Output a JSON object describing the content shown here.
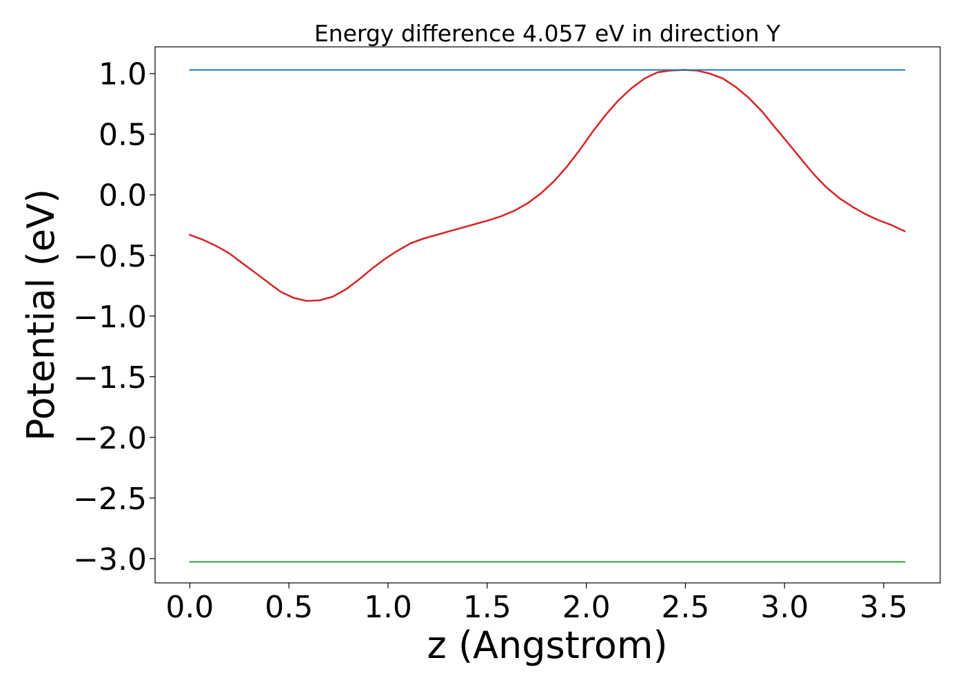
{
  "chart_data": {
    "type": "line",
    "title": "Energy difference 4.057 eV in direction Y",
    "xlabel": "z (Angstrom)",
    "ylabel": "Potential (eV)",
    "xlim": [
      -0.175,
      3.785
    ],
    "ylim": [
      -3.2,
      1.22
    ],
    "xticks": [
      0.0,
      0.5,
      1.0,
      1.5,
      2.0,
      2.5,
      3.0,
      3.5
    ],
    "xtick_labels": [
      "0.0",
      "0.5",
      "1.0",
      "1.5",
      "2.0",
      "2.5",
      "3.0",
      "3.5"
    ],
    "yticks": [
      1.0,
      0.5,
      0.0,
      -0.5,
      -1.0,
      -1.5,
      -2.0,
      -2.5,
      -3.0
    ],
    "ytick_labels": [
      "1.0",
      "0.5",
      "0.0",
      "−0.5",
      "−1.0",
      "−1.5",
      "−2.0",
      "−2.5",
      "−3.0"
    ],
    "grid": false,
    "series": [
      {
        "color": "#d62728",
        "x": [
          0.0,
          0.066,
          0.131,
          0.197,
          0.262,
          0.328,
          0.393,
          0.459,
          0.524,
          0.59,
          0.655,
          0.721,
          0.787,
          0.852,
          0.918,
          0.983,
          1.049,
          1.114,
          1.18,
          1.246,
          1.311,
          1.377,
          1.442,
          1.508,
          1.573,
          1.639,
          1.704,
          1.77,
          1.836,
          1.901,
          1.967,
          2.032,
          2.098,
          2.163,
          2.229,
          2.295,
          2.36,
          2.426,
          2.491,
          2.557,
          2.622,
          2.688,
          2.753,
          2.819,
          2.885,
          2.95,
          3.016,
          3.081,
          3.147,
          3.212,
          3.278,
          3.344,
          3.409,
          3.475,
          3.54,
          3.606
        ],
        "y": [
          -0.33,
          -0.37,
          -0.42,
          -0.48,
          -0.56,
          -0.64,
          -0.72,
          -0.8,
          -0.85,
          -0.875,
          -0.87,
          -0.84,
          -0.78,
          -0.7,
          -0.61,
          -0.53,
          -0.46,
          -0.4,
          -0.36,
          -0.33,
          -0.3,
          -0.27,
          -0.24,
          -0.21,
          -0.175,
          -0.13,
          -0.07,
          0.01,
          0.11,
          0.23,
          0.37,
          0.52,
          0.66,
          0.78,
          0.88,
          0.96,
          1.01,
          1.025,
          1.03,
          1.025,
          1.0,
          0.96,
          0.89,
          0.8,
          0.69,
          0.56,
          0.43,
          0.3,
          0.17,
          0.06,
          -0.03,
          -0.1,
          -0.16,
          -0.21,
          -0.25,
          -0.3
        ]
      },
      {
        "color": "#1f77b4",
        "x": [
          0.0,
          3.606
        ],
        "y": [
          1.03,
          1.03
        ]
      },
      {
        "color": "#2ca02c",
        "x": [
          0.0,
          3.606
        ],
        "y": [
          -3.027,
          -3.027
        ]
      }
    ]
  }
}
